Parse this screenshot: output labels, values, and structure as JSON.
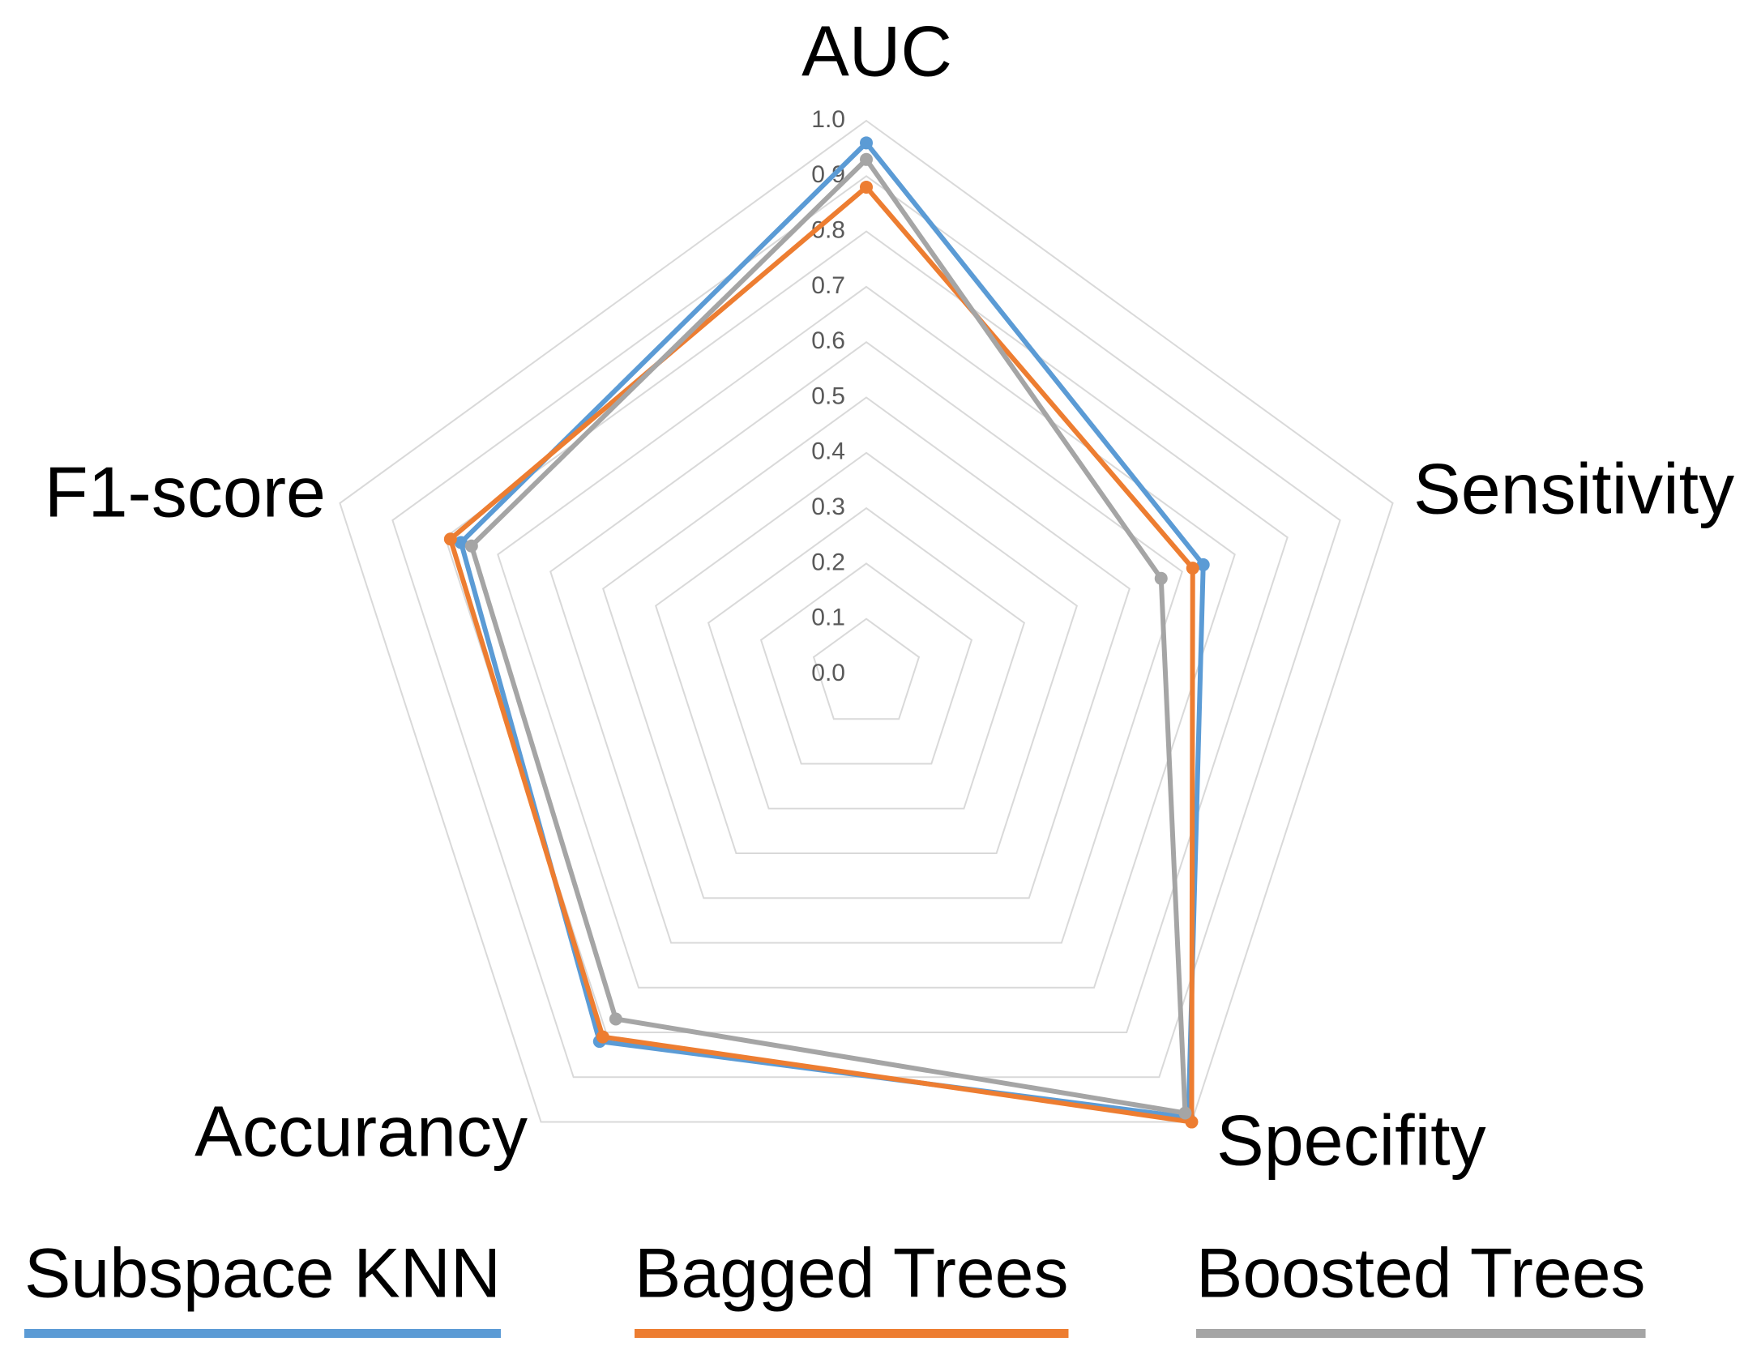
{
  "chart_data": {
    "type": "radar",
    "categories": [
      "AUC",
      "Sensitivity",
      "Specifity",
      "Accurancy",
      "F1-score"
    ],
    "series": [
      {
        "name": "Subspace KNN",
        "color": "#5b9bd5",
        "values": [
          0.96,
          0.64,
          0.99,
          0.82,
          0.77
        ]
      },
      {
        "name": "Bagged Trees",
        "color": "#ed7d31",
        "values": [
          0.88,
          0.62,
          1.0,
          0.81,
          0.79
        ]
      },
      {
        "name": "Boosted Trees",
        "color": "#a5a5a5",
        "values": [
          0.93,
          0.56,
          0.98,
          0.77,
          0.75
        ]
      }
    ],
    "rlim": [
      0,
      1
    ],
    "rticks": [
      {
        "value": 0,
        "label": "0.0"
      },
      0.1,
      0.2,
      0.3,
      0.4,
      0.5,
      0.6,
      0.7,
      0.8,
      0.9,
      {
        "value": 1,
        "label": "1.0"
      }
    ],
    "grid": true,
    "legend": "bottom"
  }
}
